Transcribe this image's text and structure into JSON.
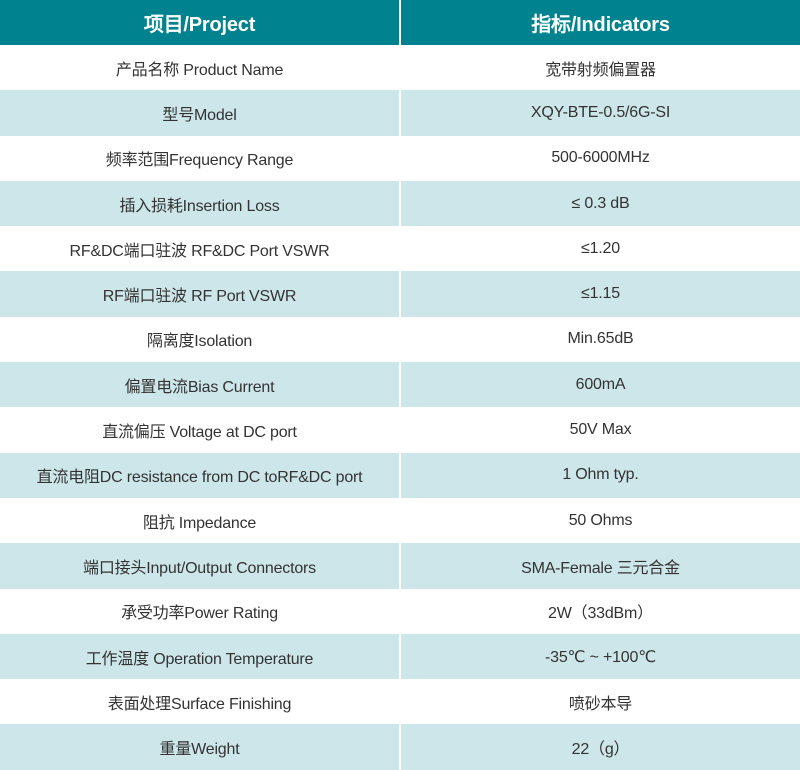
{
  "header": {
    "project": "项目/Project",
    "indicators": "指标/Indicators"
  },
  "colors": {
    "header_bg": "#00838f",
    "stripe_bg": "#cde6ea"
  },
  "rows": [
    {
      "item": "产品名称 Product Name",
      "value": "宽带射频偏置器"
    },
    {
      "item": "型号Model",
      "value": "XQY-BTE-0.5/6G-SI"
    },
    {
      "item": "频率范围Frequency Range",
      "value": "500-6000MHz"
    },
    {
      "item": "插入损耗Insertion Loss",
      "value": "≤ 0.3 dB"
    },
    {
      "item": "RF&DC端口驻波 RF&DC Port VSWR",
      "value": "≤1.20"
    },
    {
      "item": "RF端口驻波 RF Port VSWR",
      "value": "≤1.15"
    },
    {
      "item": "隔离度Isolation",
      "value": "Min.65dB"
    },
    {
      "item": "偏置电流Bias Current",
      "value": "600mA"
    },
    {
      "item": "直流偏压 Voltage at DC port",
      "value": "50V Max"
    },
    {
      "item": "直流电阻DC resistance from DC toRF&DC port",
      "value": "1 Ohm typ."
    },
    {
      "item": "阻抗 Impedance",
      "value": "50 Ohms"
    },
    {
      "item": "端口接头Input/Output Connectors",
      "value": "SMA-Female 三元合金"
    },
    {
      "item": "承受功率Power Rating",
      "value": "2W（33dBm）"
    },
    {
      "item": "工作温度 Operation Temperature",
      "value": "-35℃ ~ +100℃"
    },
    {
      "item": "表面处理Surface Finishing",
      "value": "喷砂本导"
    },
    {
      "item": "重量Weight",
      "value": "22（g）"
    }
  ]
}
